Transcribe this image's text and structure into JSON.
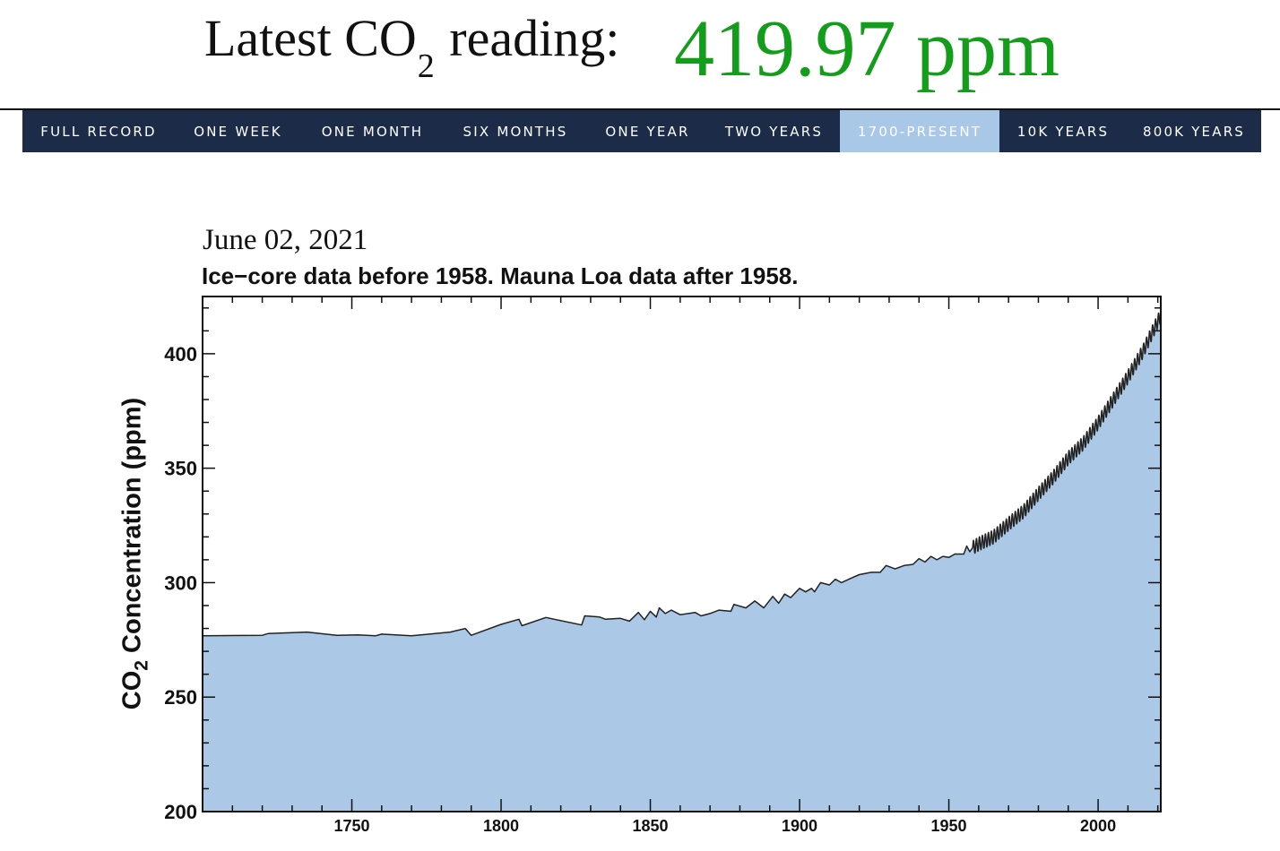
{
  "header": {
    "label_prefix": "Latest CO",
    "label_subscript": "2",
    "label_suffix": " reading:",
    "value": "419.97 ppm",
    "value_color": "#149d1b"
  },
  "nav": {
    "tabs": [
      {
        "label": "FULL RECORD",
        "active": false
      },
      {
        "label": "ONE WEEK",
        "active": false
      },
      {
        "label": "ONE MONTH",
        "active": false
      },
      {
        "label": "SIX MONTHS",
        "active": false
      },
      {
        "label": "ONE YEAR",
        "active": false
      },
      {
        "label": "TWO YEARS",
        "active": false
      },
      {
        "label": "1700-PRESENT",
        "active": true
      },
      {
        "label": "10K YEARS",
        "active": false
      },
      {
        "label": "800K YEARS",
        "active": false
      }
    ],
    "bar_color": "#1b2b48",
    "active_color": "#a9c7e6"
  },
  "chart": {
    "date": "June 02, 2021",
    "subtitle": "Ice−core data before 1958. Mauna Loa data after 1958.",
    "ylabel_prefix": "CO",
    "ylabel_subscript": "2",
    "ylabel_suffix": " Concentration (ppm)"
  },
  "chart_data": {
    "type": "area",
    "xlim": [
      1700,
      2021
    ],
    "ylim": [
      200,
      425
    ],
    "x_ticks": [
      1750,
      1800,
      1850,
      1900,
      1950,
      2000
    ],
    "y_ticks": [
      200,
      250,
      300,
      350,
      400
    ],
    "fill_color": "#abc8e6",
    "line_color": "#222222",
    "grid": false,
    "series": [
      {
        "values": [
          [
            1700,
            276.8
          ],
          [
            1720,
            277.0
          ],
          [
            1722,
            277.8
          ],
          [
            1735,
            278.4
          ],
          [
            1745,
            277.0
          ],
          [
            1752,
            277.2
          ],
          [
            1758,
            276.8
          ],
          [
            1760,
            277.5
          ],
          [
            1770,
            276.8
          ],
          [
            1783,
            278.4
          ],
          [
            1788,
            280.0
          ],
          [
            1790,
            277.0
          ],
          [
            1800,
            281.8
          ],
          [
            1806,
            284.0
          ],
          [
            1807,
            281.2
          ],
          [
            1815,
            284.8
          ],
          [
            1827,
            281.5
          ],
          [
            1828,
            285.5
          ],
          [
            1833,
            285.0
          ],
          [
            1835,
            284.0
          ],
          [
            1840,
            284.4
          ],
          [
            1843,
            283.2
          ],
          [
            1846,
            287.0
          ],
          [
            1848,
            283.8
          ],
          [
            1850,
            287.5
          ],
          [
            1852,
            285.0
          ],
          [
            1853,
            289.0
          ],
          [
            1855,
            286.5
          ],
          [
            1857,
            288.0
          ],
          [
            1860,
            286.0
          ],
          [
            1865,
            287.0
          ],
          [
            1867,
            285.5
          ],
          [
            1870,
            286.5
          ],
          [
            1873,
            288.0
          ],
          [
            1877,
            287.5
          ],
          [
            1878,
            290.5
          ],
          [
            1882,
            289.0
          ],
          [
            1885,
            292.0
          ],
          [
            1888,
            289.0
          ],
          [
            1891,
            294.0
          ],
          [
            1893,
            291.0
          ],
          [
            1895,
            295.0
          ],
          [
            1897,
            293.5
          ],
          [
            1900,
            297.5
          ],
          [
            1902,
            296.0
          ],
          [
            1904,
            297.5
          ],
          [
            1905,
            296.0
          ],
          [
            1907,
            300.0
          ],
          [
            1910,
            299.0
          ],
          [
            1912,
            301.5
          ],
          [
            1914,
            300.0
          ],
          [
            1917,
            301.8
          ],
          [
            1920,
            303.5
          ],
          [
            1924,
            304.5
          ],
          [
            1927,
            304.5
          ],
          [
            1929,
            307.5
          ],
          [
            1932,
            306.0
          ],
          [
            1935,
            307.5
          ],
          [
            1938,
            308.0
          ],
          [
            1940,
            310.5
          ],
          [
            1942,
            309.0
          ],
          [
            1944,
            311.5
          ],
          [
            1946,
            310.0
          ],
          [
            1948,
            311.5
          ],
          [
            1950,
            311.0
          ],
          [
            1952,
            312.5
          ],
          [
            1955,
            312.5
          ],
          [
            1956,
            316.0
          ],
          [
            1957,
            313.5
          ],
          [
            1958,
            315.3
          ],
          [
            1960,
            316.9
          ],
          [
            1965,
            320.0
          ],
          [
            1970,
            325.7
          ],
          [
            1975,
            331.1
          ],
          [
            1980,
            338.8
          ],
          [
            1985,
            346.1
          ],
          [
            1990,
            354.4
          ],
          [
            1995,
            360.8
          ],
          [
            2000,
            369.7
          ],
          [
            2005,
            379.8
          ],
          [
            2010,
            389.9
          ],
          [
            2015,
            401.0
          ],
          [
            2020,
            414.2
          ],
          [
            2021,
            416.5
          ]
        ]
      }
    ]
  }
}
